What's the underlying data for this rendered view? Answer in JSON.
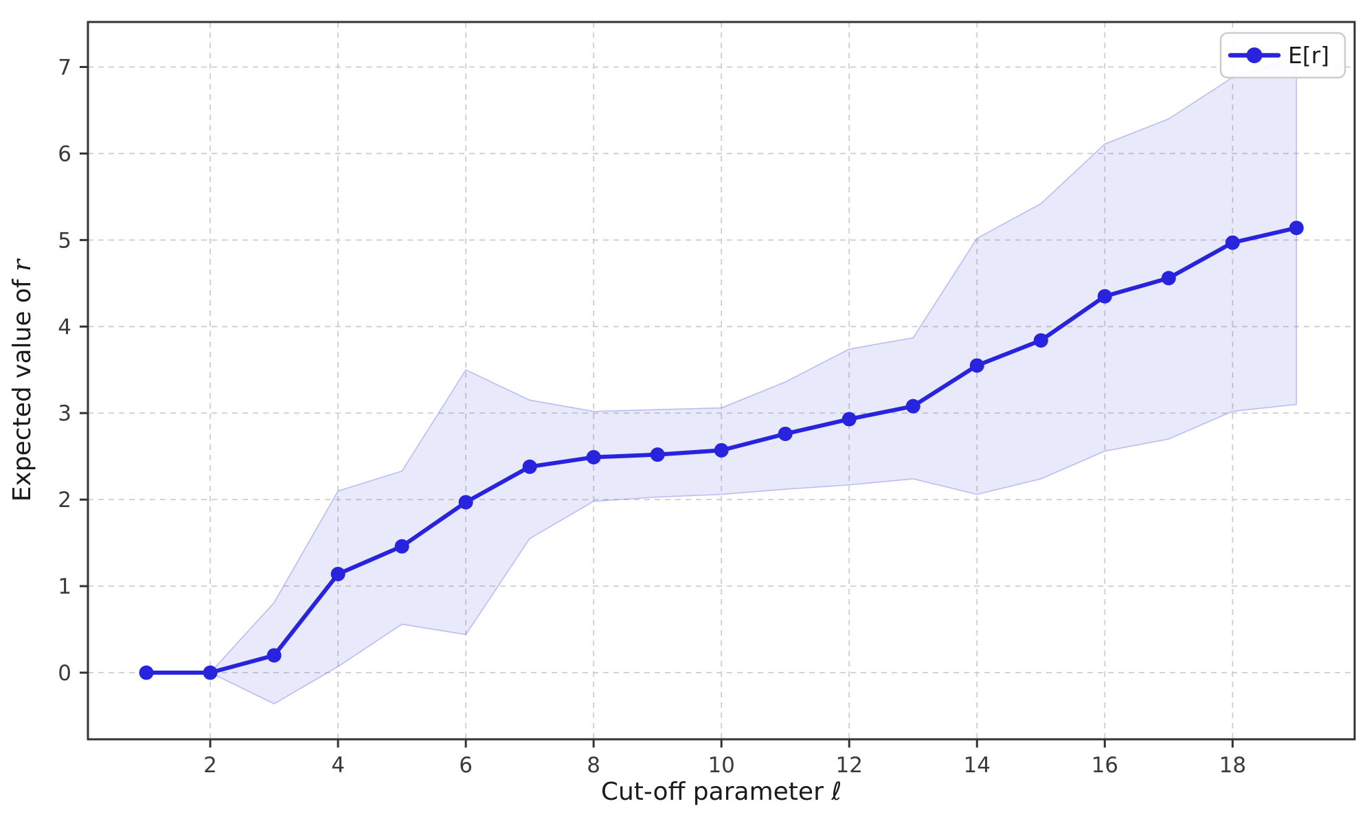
{
  "chart_data": {
    "type": "line",
    "x": [
      1,
      2,
      3,
      4,
      5,
      6,
      7,
      8,
      9,
      10,
      11,
      12,
      13,
      14,
      15,
      16,
      17,
      18,
      19
    ],
    "series": [
      {
        "name": "E[r]",
        "values": [
          0.0,
          0.0,
          0.2,
          1.14,
          1.46,
          1.97,
          2.38,
          2.49,
          2.52,
          2.57,
          2.76,
          2.93,
          3.08,
          3.55,
          3.84,
          4.35,
          4.56,
          4.97,
          5.14
        ]
      }
    ],
    "band": {
      "lower": [
        0.0,
        0.0,
        -0.36,
        0.07,
        0.56,
        0.44,
        1.55,
        1.98,
        2.03,
        2.06,
        2.12,
        2.17,
        2.24,
        2.06,
        2.24,
        2.56,
        2.7,
        3.02,
        3.1
      ],
      "upper": [
        0.0,
        0.0,
        0.81,
        2.1,
        2.33,
        3.5,
        3.15,
        3.02,
        3.04,
        3.06,
        3.36,
        3.74,
        3.87,
        5.02,
        5.42,
        6.11,
        6.4,
        6.88,
        7.12
      ]
    },
    "title": "",
    "xlabel_prefix": "Cut-off parameter",
    "xlabel_symbol": "ℓ",
    "ylabel_prefix": "Expected value of",
    "ylabel_symbol": "r",
    "legend": {
      "label": "E[r]",
      "position": "upper right"
    },
    "xticks": [
      2,
      4,
      6,
      8,
      10,
      12,
      14,
      16,
      18
    ],
    "yticks": [
      0,
      1,
      2,
      3,
      4,
      5,
      6,
      7
    ],
    "xlim": [
      0.086,
      19.91
    ],
    "ylim": [
      -0.77,
      7.52
    ],
    "grid": true,
    "colors": {
      "line": "#2823dc",
      "marker": "#2823dc",
      "band_fill": "rgba(88, 88, 228, 0.13)",
      "band_edge": "rgba(120, 120, 232, 0.45)",
      "grid": "#cdcdcd",
      "spine": "#333333",
      "tick_label": "#3a3a3a",
      "axis_label": "#1a1a1a",
      "legend_border": "#cccccc",
      "legend_bg": "#ffffff",
      "legend_text": "#1a1a1a"
    }
  }
}
